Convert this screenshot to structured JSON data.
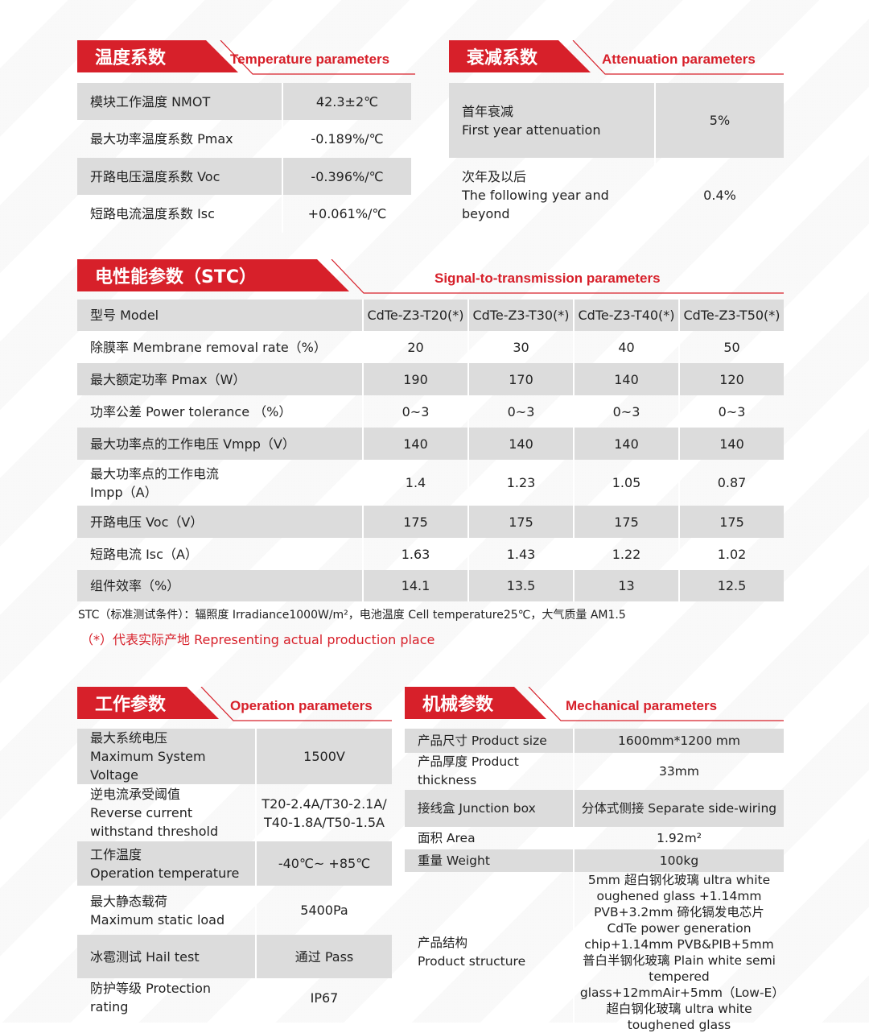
{
  "temperature": {
    "title_cn": "温度系数",
    "title_en": "Temperature parameters",
    "rows": [
      [
        "模块工作温度 NMOT",
        "42.3±2℃"
      ],
      [
        "最大功率温度系数 Pmax",
        "-0.189%/℃"
      ],
      [
        "开路电压温度系数 Voc",
        "-0.396%/℃"
      ],
      [
        "短路电流温度系数 Isc",
        "+0.061%/℃"
      ]
    ]
  },
  "attenuation": {
    "title_cn": "衰减系数",
    "title_en": "Attenuation parameters",
    "rows": [
      [
        "首年衰减\nFirst year attenuation",
        "5%"
      ],
      [
        "次年及以后\nThe following year and beyond",
        "0.4%"
      ]
    ]
  },
  "stc": {
    "title_cn": "电性能参数（STC）",
    "title_en": "Signal-to-transmission parameters",
    "rows": [
      [
        "型号 Model",
        "CdTe-Z3-T20(*)",
        "CdTe-Z3-T30(*)",
        "CdTe-Z3-T40(*)",
        "CdTe-Z3-T50(*)"
      ],
      [
        "除膜率 Membrane removal rate（%）",
        "20",
        "30",
        "40",
        "50"
      ],
      [
        "最大额定功率 Pmax（W）",
        "190",
        "170",
        "140",
        "120"
      ],
      [
        "功率公差 Power tolerance （%）",
        "0~3",
        "0~3",
        "0~3",
        "0~3"
      ],
      [
        "最大功率点的工作电压 Vmpp（V）",
        "140",
        "140",
        "140",
        "140"
      ],
      [
        "最大功率点的工作电流\nImpp（A）",
        "1.4",
        "1.23",
        "1.05",
        "0.87"
      ],
      [
        "开路电压 Voc（V）",
        "175",
        "175",
        "175",
        "175"
      ],
      [
        "短路电流 Isc（A）",
        "1.63",
        "1.43",
        "1.22",
        "1.02"
      ],
      [
        "组件效率（%）",
        "14.1",
        "13.5",
        "13",
        "12.5"
      ]
    ],
    "note": "STC（标准测试条件）：辐照度 Irradiance1000W/m²，电池温度 Cell temperature25℃，大气质量 AM1.5",
    "note_red": "（*）代表实际产地 Representing actual production place"
  },
  "operation": {
    "title_cn": "工作参数",
    "title_en": "Operation parameters",
    "rows": [
      [
        "最大系统电压\nMaximum System Voltage",
        "1500V"
      ],
      [
        "逆电流承受阈值\nReverse current withstand threshold",
        "T20-2.4A/T30-2.1A/\nT40-1.8A/T50-1.5A"
      ],
      [
        "工作温度\nOperation temperature",
        "-40℃~ +85℃"
      ],
      [
        "最大静态载荷\nMaximum static load",
        "5400Pa"
      ],
      [
        "冰雹测试 Hail test",
        "通过 Pass"
      ],
      [
        "防护等级 Protection rating",
        "IP67"
      ]
    ]
  },
  "mechanical": {
    "title_cn": "机械参数",
    "title_en": "Mechanical parameters",
    "rows": [
      [
        "产品尺寸 Product size",
        "1600mm*1200 mm"
      ],
      [
        "产品厚度 Product thickness",
        "33mm"
      ],
      [
        "接线盒 Junction box",
        "分体式侧接 Separate side-wiring"
      ],
      [
        "面积 Area",
        "1.92m²"
      ],
      [
        "重量 Weight",
        "100kg"
      ],
      [
        "产品结构\nProduct structure",
        "5mm 超白钢化玻璃  ultra white oughened glass +1.14mm PVB+3.2mm 碲化镉发电芯片 CdTe power generation chip+1.14mm PVB&PIB+5mm 普白半钢化玻璃 Plain white semi tempered glass+12mmAir+5mm（Low-E）超白钢化玻璃 ultra white toughened glass"
      ]
    ]
  },
  "colors": {
    "accent": "#d7202a",
    "row_shade": "#dcdcdc"
  }
}
